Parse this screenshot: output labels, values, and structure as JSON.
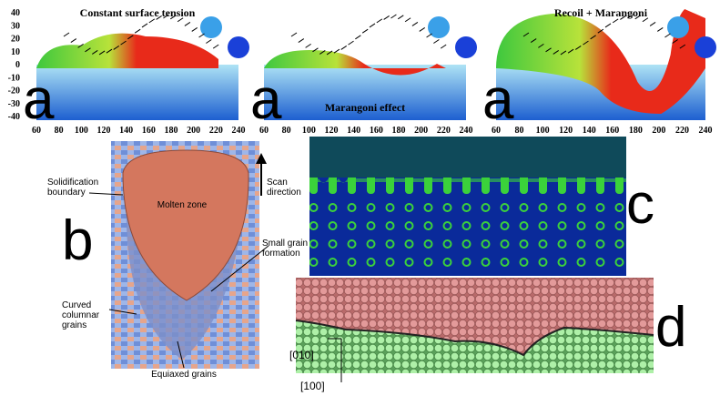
{
  "panel_a": {
    "y_ticks": [
      40,
      30,
      20,
      10,
      0,
      -10,
      -20,
      -30,
      -40
    ],
    "x_ticks": [
      60,
      80,
      100,
      120,
      140,
      160,
      180,
      200,
      220,
      240
    ],
    "plots": [
      {
        "title": "Constant surface tension",
        "label": "a"
      },
      {
        "title": "Marangoni effect",
        "label": "a"
      },
      {
        "title": "Recoil + Marangoni",
        "label": "a"
      }
    ]
  },
  "panel_b": {
    "label": "b",
    "molten": "Molten zone",
    "solidification": "Solidification boundary",
    "scan": "Scan direction",
    "small_grain": "Small grain formation",
    "columnar": "Curved columnar grains",
    "equiaxed": "Equiaxed grains"
  },
  "panel_c": {
    "label": "c"
  },
  "panel_d": {
    "label": "d",
    "axis_1": "[010]",
    "axis_2": "[100]"
  }
}
